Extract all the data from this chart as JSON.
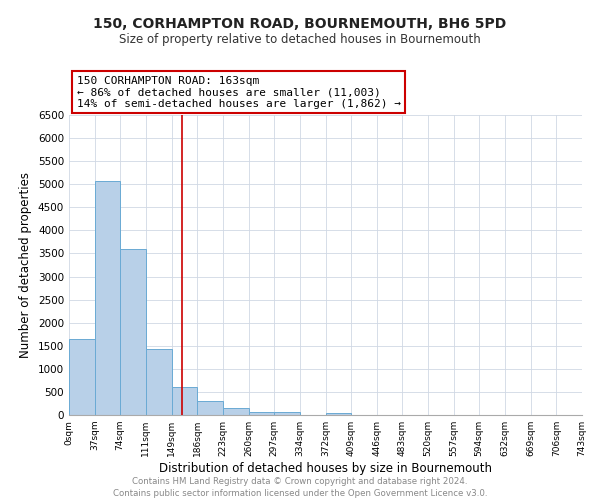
{
  "title": "150, CORHAMPTON ROAD, BOURNEMOUTH, BH6 5PD",
  "subtitle": "Size of property relative to detached houses in Bournemouth",
  "xlabel": "Distribution of detached houses by size in Bournemouth",
  "ylabel": "Number of detached properties",
  "bin_edges": [
    0,
    37,
    74,
    111,
    149,
    186,
    223,
    260,
    297,
    334,
    372,
    409,
    446,
    483,
    520,
    557,
    594,
    632,
    669,
    706,
    743
  ],
  "bin_counts": [
    1650,
    5080,
    3600,
    1430,
    615,
    300,
    155,
    75,
    55,
    0,
    50,
    0,
    0,
    0,
    0,
    0,
    0,
    0,
    0,
    0
  ],
  "bar_color": "#b8d0e8",
  "bar_edge_color": "#6aaad4",
  "property_line_x": 163,
  "annotation_title": "150 CORHAMPTON ROAD: 163sqm",
  "annotation_line1": "← 86% of detached houses are smaller (11,003)",
  "annotation_line2": "14% of semi-detached houses are larger (1,862) →",
  "annotation_box_color": "#ffffff",
  "annotation_box_edge_color": "#cc0000",
  "vline_color": "#cc0000",
  "ylim": [
    0,
    6500
  ],
  "yticks": [
    0,
    500,
    1000,
    1500,
    2000,
    2500,
    3000,
    3500,
    4000,
    4500,
    5000,
    5500,
    6000,
    6500
  ],
  "footer1": "Contains HM Land Registry data © Crown copyright and database right 2024.",
  "footer2": "Contains public sector information licensed under the Open Government Licence v3.0.",
  "background_color": "#ffffff",
  "grid_color": "#d0d8e4"
}
